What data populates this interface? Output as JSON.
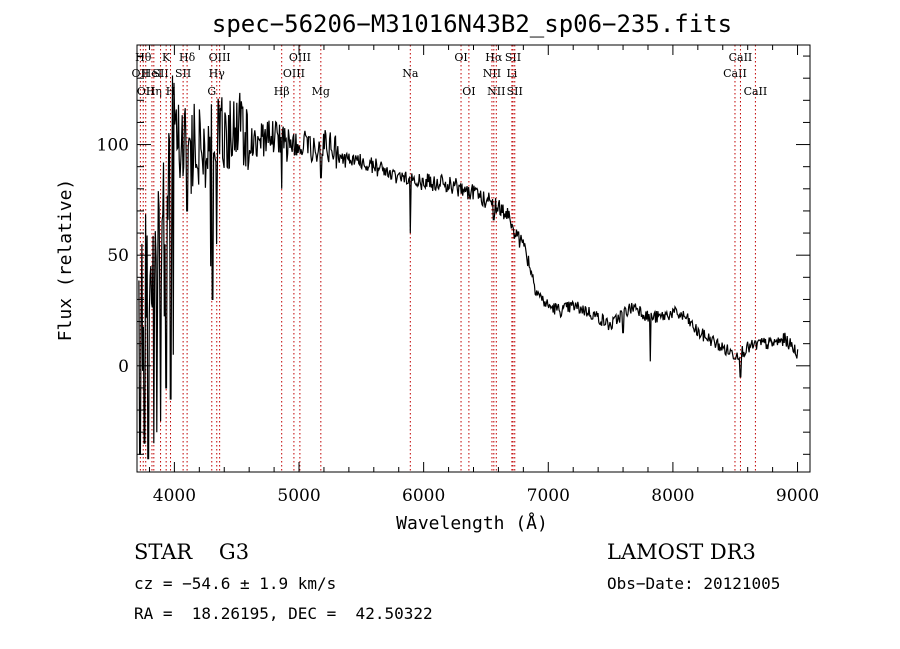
{
  "chart_data": {
    "type": "line",
    "title": "spec−56206−M31016N43B2_sp06−235.fits",
    "xlabel": "Wavelength (Å)",
    "ylabel": "Flux (relative)",
    "xlim": [
      3700,
      9100
    ],
    "ylim": [
      -48,
      145
    ],
    "xticks": [
      4000,
      5000,
      6000,
      7000,
      8000,
      9000
    ],
    "yticks": [
      0,
      50,
      100
    ],
    "x_minor_step": 200,
    "y_minor_step": 10,
    "line_color": "#000000",
    "marker_color": "#c00000",
    "spectrum_anchors": [
      [
        3715,
        20
      ],
      [
        3780,
        40
      ],
      [
        3850,
        60
      ],
      [
        3900,
        45
      ],
      [
        3950,
        80
      ],
      [
        4000,
        100
      ],
      [
        4050,
        106
      ],
      [
        4100,
        96
      ],
      [
        4200,
        100
      ],
      [
        4250,
        96
      ],
      [
        4300,
        105
      ],
      [
        4350,
        106
      ],
      [
        4400,
        105
      ],
      [
        4450,
        105
      ],
      [
        4500,
        110
      ],
      [
        4600,
        102
      ],
      [
        4700,
        102
      ],
      [
        4800,
        104
      ],
      [
        4900,
        100
      ],
      [
        5000,
        100
      ],
      [
        5100,
        100
      ],
      [
        5200,
        100
      ],
      [
        5300,
        96
      ],
      [
        5400,
        92
      ],
      [
        5500,
        92
      ],
      [
        5600,
        90
      ],
      [
        5700,
        88
      ],
      [
        5800,
        86
      ],
      [
        5900,
        83
      ],
      [
        6000,
        83
      ],
      [
        6100,
        83
      ],
      [
        6200,
        82
      ],
      [
        6300,
        80
      ],
      [
        6400,
        78
      ],
      [
        6500,
        75
      ],
      [
        6600,
        72
      ],
      [
        6650,
        70
      ],
      [
        6700,
        65
      ],
      [
        6750,
        58
      ],
      [
        6800,
        55
      ],
      [
        6850,
        46
      ],
      [
        6900,
        35
      ],
      [
        6950,
        30
      ],
      [
        7000,
        27
      ],
      [
        7100,
        25
      ],
      [
        7200,
        27
      ],
      [
        7300,
        25
      ],
      [
        7400,
        22
      ],
      [
        7500,
        18
      ],
      [
        7600,
        24
      ],
      [
        7700,
        27
      ],
      [
        7800,
        22
      ],
      [
        7900,
        22
      ],
      [
        8000,
        24
      ],
      [
        8100,
        22
      ],
      [
        8200,
        15
      ],
      [
        8300,
        12
      ],
      [
        8400,
        8
      ],
      [
        8500,
        5
      ],
      [
        8600,
        8
      ],
      [
        8700,
        10
      ],
      [
        8800,
        10
      ],
      [
        8900,
        12
      ],
      [
        9000,
        6
      ]
    ],
    "spectrum_dips": [
      [
        3725,
        -40
      ],
      [
        3760,
        -35
      ],
      [
        3790,
        -42
      ],
      [
        3835,
        -35
      ],
      [
        3860,
        -30
      ],
      [
        3890,
        -25
      ],
      [
        3935,
        -10
      ],
      [
        3970,
        -15
      ],
      [
        3990,
        5
      ],
      [
        4101,
        70
      ],
      [
        4290,
        45
      ],
      [
        4305,
        30
      ],
      [
        4340,
        55
      ],
      [
        4861,
        80
      ],
      [
        5175,
        85
      ],
      [
        5892,
        60
      ],
      [
        6563,
        66
      ],
      [
        6870,
        40
      ],
      [
        7600,
        15
      ],
      [
        7820,
        2
      ],
      [
        8542,
        -5
      ]
    ],
    "markers": [
      {
        "x": 3727,
        "label": "OII",
        "row": 2
      },
      {
        "x": 3750,
        "label": "Hθ",
        "row": 1
      },
      {
        "x": 3770,
        "label": "OII",
        "row": 3
      },
      {
        "x": 3820,
        "label": "HeI",
        "row": 2
      },
      {
        "x": 3835,
        "label": "Hη",
        "row": 3
      },
      {
        "x": 3889,
        "label": "SII",
        "row": 2
      },
      {
        "x": 3934,
        "label": "K",
        "row": 1
      },
      {
        "x": 3969,
        "label": "H",
        "row": 3
      },
      {
        "x": 4070,
        "label": "SII",
        "row": 2
      },
      {
        "x": 4102,
        "label": "Hδ",
        "row": 1
      },
      {
        "x": 4300,
        "label": "G",
        "row": 3
      },
      {
        "x": 4340,
        "label": "Hγ",
        "row": 2
      },
      {
        "x": 4363,
        "label": "OIII",
        "row": 1
      },
      {
        "x": 4861,
        "label": "Hβ",
        "row": 3
      },
      {
        "x": 4959,
        "label": "OIII",
        "row": 2
      },
      {
        "x": 5007,
        "label": "OIII",
        "row": 1
      },
      {
        "x": 5175,
        "label": "Mg",
        "row": 3
      },
      {
        "x": 5893,
        "label": "Na",
        "row": 2
      },
      {
        "x": 6300,
        "label": "OI",
        "row": 1
      },
      {
        "x": 6363,
        "label": "OI",
        "row": 3
      },
      {
        "x": 6548,
        "label": "NII",
        "row": 2
      },
      {
        "x": 6563,
        "label": "Hα",
        "row": 1
      },
      {
        "x": 6583,
        "label": "NII",
        "row": 3
      },
      {
        "x": 6708,
        "label": "Li",
        "row": 2
      },
      {
        "x": 6717,
        "label": "SII",
        "row": 1
      },
      {
        "x": 6731,
        "label": "SII",
        "row": 3
      },
      {
        "x": 8498,
        "label": "CaII",
        "row": 2
      },
      {
        "x": 8542,
        "label": "CaII",
        "row": 1
      },
      {
        "x": 8662,
        "label": "CaII",
        "row": 3
      }
    ]
  },
  "info": {
    "class_line": "STAR    G3",
    "survey": "LAMOST DR3",
    "cz": "cz = −54.6 ± 1.9 km/s",
    "obs_date": "Obs−Date: 20121005",
    "coords": "RA =  18.26195, DEC =  42.50322"
  }
}
